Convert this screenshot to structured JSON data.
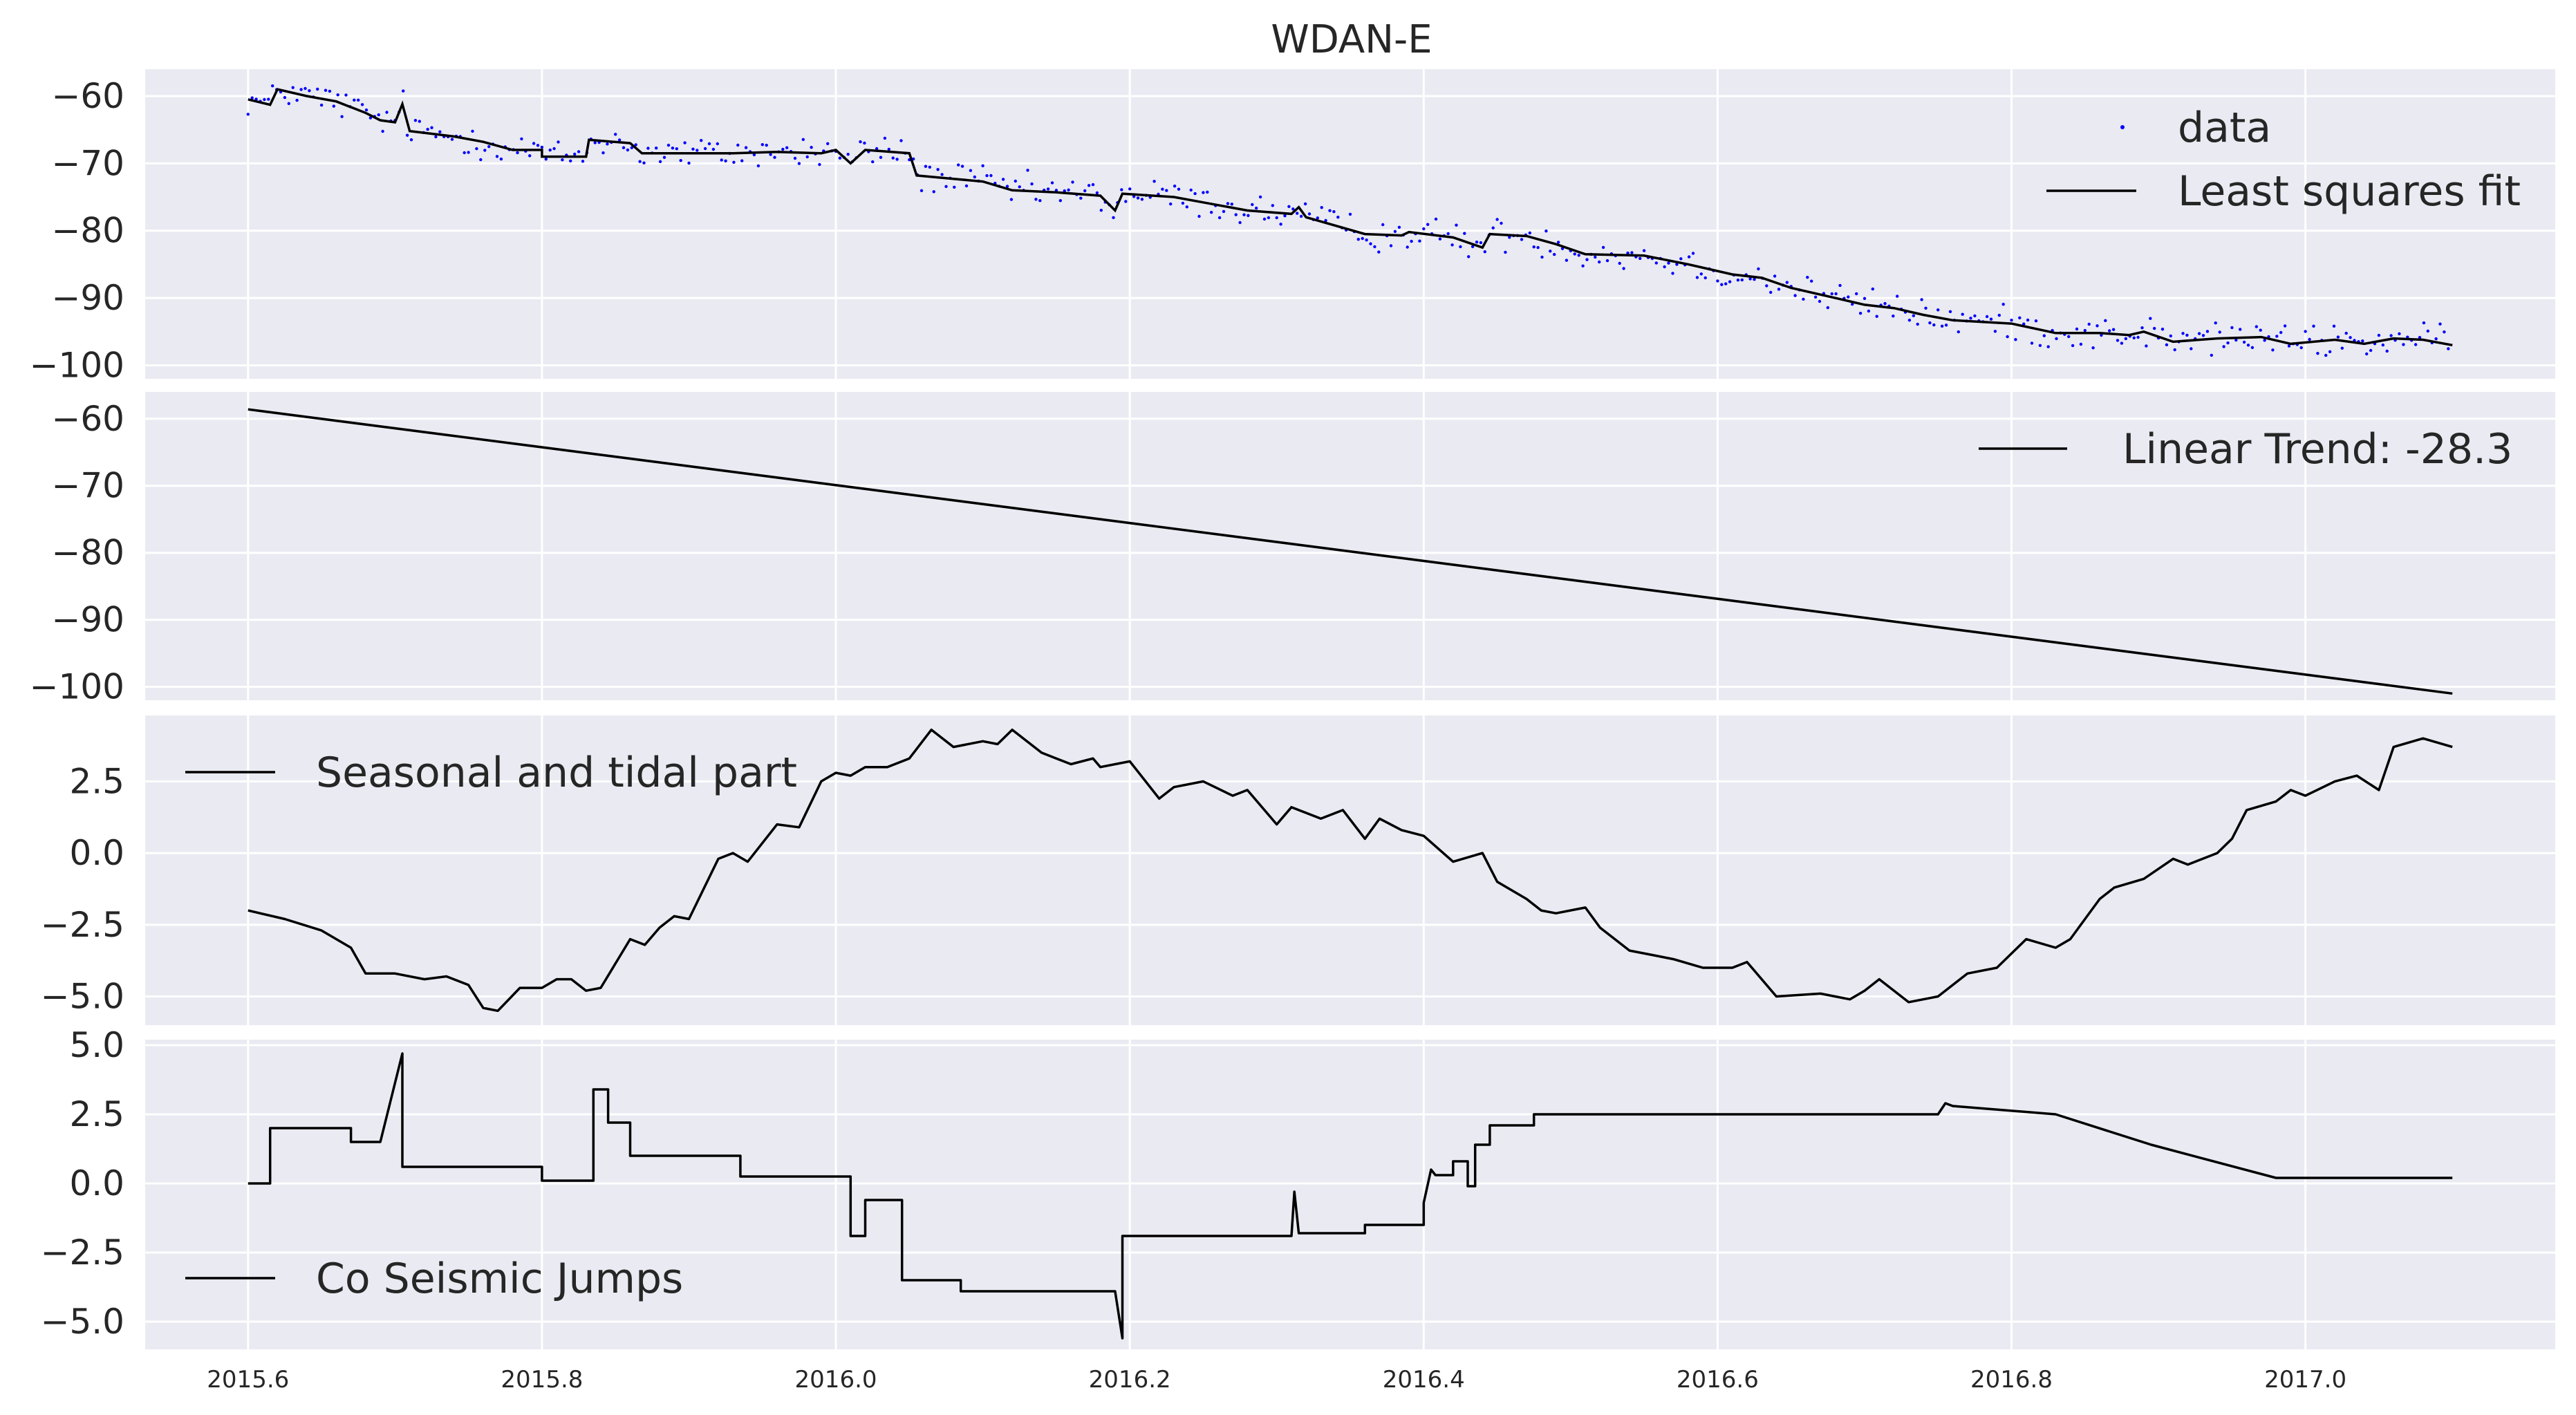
{
  "chart_data": [
    {
      "type": "scatter+line",
      "title": "WDAN-E",
      "xlabel": "",
      "ylabel": "",
      "xlim": [
        2015.53,
        2017.17
      ],
      "ylim": [
        -102,
        -56
      ],
      "yticks": [
        "−60",
        "−70",
        "−80",
        "−90",
        "−100"
      ],
      "ytick_values": [
        -60,
        -70,
        -80,
        -90,
        -100
      ],
      "grid": true,
      "legend": "top-right",
      "series": [
        {
          "name": "data",
          "kind": "points",
          "color": "#0000ff"
        },
        {
          "name": "Least squares fit",
          "kind": "line",
          "color": "#000000"
        }
      ],
      "fit_points": [
        [
          2015.6,
          -60.5
        ],
        [
          2015.615,
          -61.3
        ],
        [
          2015.62,
          -59.0
        ],
        [
          2015.64,
          -60.0
        ],
        [
          2015.66,
          -60.8
        ],
        [
          2015.68,
          -62.5
        ],
        [
          2015.69,
          -63.6
        ],
        [
          2015.7,
          -63.9
        ],
        [
          2015.705,
          -61.2
        ],
        [
          2015.71,
          -65.2
        ],
        [
          2015.74,
          -66.0
        ],
        [
          2015.76,
          -66.8
        ],
        [
          2015.78,
          -68.0
        ],
        [
          2015.8,
          -68.0
        ],
        [
          2015.8,
          -69.0
        ],
        [
          2015.83,
          -69.0
        ],
        [
          2015.832,
          -66.5
        ],
        [
          2015.86,
          -67.0
        ],
        [
          2015.868,
          -68.5
        ],
        [
          2015.9,
          -68.5
        ],
        [
          2015.93,
          -68.5
        ],
        [
          2015.96,
          -68.3
        ],
        [
          2015.99,
          -68.5
        ],
        [
          2016.0,
          -68.0
        ],
        [
          2016.01,
          -70.0
        ],
        [
          2016.02,
          -68.0
        ],
        [
          2016.05,
          -68.5
        ],
        [
          2016.055,
          -71.8
        ],
        [
          2016.08,
          -72.3
        ],
        [
          2016.1,
          -72.7
        ],
        [
          2016.12,
          -74.0
        ],
        [
          2016.15,
          -74.3
        ],
        [
          2016.18,
          -74.8
        ],
        [
          2016.19,
          -77.0
        ],
        [
          2016.195,
          -74.5
        ],
        [
          2016.23,
          -75.0
        ],
        [
          2016.25,
          -75.8
        ],
        [
          2016.28,
          -77.0
        ],
        [
          2016.31,
          -77.5
        ],
        [
          2016.315,
          -76.5
        ],
        [
          2016.32,
          -78.0
        ],
        [
          2016.36,
          -80.5
        ],
        [
          2016.385,
          -80.7
        ],
        [
          2016.39,
          -80.2
        ],
        [
          2016.42,
          -81.0
        ],
        [
          2016.44,
          -82.5
        ],
        [
          2016.445,
          -80.5
        ],
        [
          2016.47,
          -80.8
        ],
        [
          2016.49,
          -82.0
        ],
        [
          2016.51,
          -83.5
        ],
        [
          2016.55,
          -83.7
        ],
        [
          2016.58,
          -85.0
        ],
        [
          2016.61,
          -86.5
        ],
        [
          2016.63,
          -87.0
        ],
        [
          2016.65,
          -88.5
        ],
        [
          2016.68,
          -90.0
        ],
        [
          2016.7,
          -91.0
        ],
        [
          2016.72,
          -91.5
        ],
        [
          2016.74,
          -92.5
        ],
        [
          2016.76,
          -93.3
        ],
        [
          2016.8,
          -93.8
        ],
        [
          2016.83,
          -95.2
        ],
        [
          2016.86,
          -95.2
        ],
        [
          2016.88,
          -95.5
        ],
        [
          2016.89,
          -95.0
        ],
        [
          2016.91,
          -96.5
        ],
        [
          2016.94,
          -96.0
        ],
        [
          2016.97,
          -95.8
        ],
        [
          2016.99,
          -96.8
        ],
        [
          2017.02,
          -96.2
        ],
        [
          2017.04,
          -96.8
        ],
        [
          2017.06,
          -96.0
        ],
        [
          2017.08,
          -96.2
        ],
        [
          2017.1,
          -97.0
        ]
      ]
    },
    {
      "type": "line",
      "title": "",
      "xlim": [
        2015.53,
        2017.17
      ],
      "ylim": [
        -102,
        -56
      ],
      "yticks": [
        "−60",
        "−70",
        "−80",
        "−90",
        "−100"
      ],
      "ytick_values": [
        -60,
        -70,
        -80,
        -90,
        -100
      ],
      "grid": true,
      "legend": "top-right",
      "series": [
        {
          "name": "Linear Trend: -28.3",
          "kind": "line",
          "color": "#000000",
          "x": [
            2015.6,
            2017.1
          ],
          "y": [
            -58.6,
            -101.0
          ]
        }
      ]
    },
    {
      "type": "line",
      "title": "",
      "xlim": [
        2015.53,
        2017.17
      ],
      "ylim": [
        -6.0,
        4.8
      ],
      "yticks": [
        "2.5",
        "0.0",
        "−2.5",
        "−5.0"
      ],
      "ytick_values": [
        2.5,
        0.0,
        -2.5,
        -5.0
      ],
      "grid": true,
      "legend": "top-left",
      "series": [
        {
          "name": "Seasonal and tidal part",
          "kind": "line",
          "color": "#000000",
          "x": [
            2015.6,
            2015.625,
            2015.65,
            2015.67,
            2015.68,
            2015.7,
            2015.72,
            2015.735,
            2015.75,
            2015.76,
            2015.77,
            2015.785,
            2015.8,
            2015.81,
            2015.82,
            2015.83,
            2015.84,
            2015.86,
            2015.87,
            2015.88,
            2015.89,
            2015.9,
            2015.92,
            2015.93,
            2015.94,
            2015.96,
            2015.975,
            2015.99,
            2016.0,
            2016.01,
            2016.02,
            2016.035,
            2016.05,
            2016.065,
            2016.08,
            2016.1,
            2016.11,
            2016.12,
            2016.14,
            2016.16,
            2016.175,
            2016.18,
            2016.2,
            2016.22,
            2016.23,
            2016.25,
            2016.27,
            2016.28,
            2016.3,
            2016.31,
            2016.33,
            2016.345,
            2016.36,
            2016.37,
            2016.385,
            2016.4,
            2016.42,
            2016.44,
            2016.45,
            2016.47,
            2016.48,
            2016.49,
            2016.51,
            2016.52,
            2016.54,
            2016.56,
            2016.57,
            2016.59,
            2016.61,
            2016.62,
            2016.64,
            2016.67,
            2016.69,
            2016.7,
            2016.71,
            2016.73,
            2016.75,
            2016.77,
            2016.79,
            2016.81,
            2016.83,
            2016.84,
            2016.85,
            2016.86,
            2016.87,
            2016.89,
            2016.91,
            2016.92,
            2016.94,
            2016.95,
            2016.96,
            2016.98,
            2016.99,
            2017.0,
            2017.02,
            2017.035,
            2017.05,
            2017.06,
            2017.08,
            2017.1
          ],
          "y": [
            -2.0,
            -2.3,
            -2.7,
            -3.3,
            -4.2,
            -4.2,
            -4.4,
            -4.3,
            -4.6,
            -5.4,
            -5.5,
            -4.7,
            -4.7,
            -4.4,
            -4.4,
            -4.8,
            -4.7,
            -3.0,
            -3.2,
            -2.6,
            -2.2,
            -2.3,
            -0.2,
            0.0,
            -0.3,
            1.0,
            0.9,
            2.5,
            2.8,
            2.7,
            3.0,
            3.0,
            3.3,
            4.3,
            3.7,
            3.9,
            3.8,
            4.3,
            3.5,
            3.1,
            3.3,
            3.0,
            3.2,
            1.9,
            2.3,
            2.5,
            2.0,
            2.2,
            1.0,
            1.6,
            1.2,
            1.5,
            0.5,
            1.2,
            0.8,
            0.6,
            -0.3,
            0.0,
            -1.0,
            -1.6,
            -2.0,
            -2.1,
            -1.9,
            -2.6,
            -3.4,
            -3.6,
            -3.7,
            -4.0,
            -4.0,
            -3.8,
            -5.0,
            -4.9,
            -5.1,
            -4.8,
            -4.4,
            -5.2,
            -5.0,
            -4.2,
            -4.0,
            -3.0,
            -3.3,
            -3.0,
            -2.3,
            -1.6,
            -1.2,
            -0.9,
            -0.2,
            -0.4,
            0.0,
            0.5,
            1.5,
            1.8,
            2.2,
            2.0,
            2.5,
            2.7,
            2.2,
            3.7,
            4.0,
            3.7
          ]
        }
      ]
    },
    {
      "type": "line",
      "title": "",
      "xlim": [
        2015.53,
        2017.17
      ],
      "ylim": [
        -6.0,
        5.2
      ],
      "yticks": [
        "5.0",
        "2.5",
        "0.0",
        "−2.5",
        "−5.0"
      ],
      "ytick_values": [
        5.0,
        2.5,
        0.0,
        -2.5,
        -5.0
      ],
      "xticks": [
        "2015.6",
        "2015.8",
        "2016.0",
        "2016.2",
        "2016.4",
        "2016.6",
        "2016.8",
        "2017.0"
      ],
      "xtick_values": [
        2015.6,
        2015.8,
        2016.0,
        2016.2,
        2016.4,
        2016.6,
        2016.8,
        2017.0
      ],
      "grid": true,
      "legend": "bottom-left",
      "series": [
        {
          "name": "Co Seismic Jumps",
          "kind": "step-line",
          "color": "#000000",
          "x": [
            2015.6,
            2015.615,
            2015.615,
            2015.67,
            2015.67,
            2015.69,
            2015.705,
            2015.705,
            2015.71,
            2015.71,
            2015.8,
            2015.8,
            2015.835,
            2015.835,
            2015.84,
            2015.845,
            2015.845,
            2015.86,
            2015.86,
            2015.935,
            2015.935,
            2016.0,
            2016.01,
            2016.01,
            2016.02,
            2016.02,
            2016.035,
            2016.045,
            2016.045,
            2016.085,
            2016.085,
            2016.19,
            2016.195,
            2016.195,
            2016.31,
            2016.312,
            2016.315,
            2016.32,
            2016.32,
            2016.36,
            2016.36,
            2016.4,
            2016.4,
            2016.405,
            2016.408,
            2016.41,
            2016.41,
            2016.42,
            2016.42,
            2016.43,
            2016.43,
            2016.435,
            2016.435,
            2016.445,
            2016.445,
            2016.455,
            2016.455,
            2016.46,
            2016.46,
            2016.47,
            2016.47,
            2016.475,
            2016.475,
            2016.56,
            2016.56,
            2016.75,
            2016.755,
            2016.755,
            2016.76,
            2016.76,
            2016.83,
            2016.83,
            2016.895,
            2016.895,
            2016.98,
            2016.98,
            2017.1
          ],
          "y": [
            0.0,
            0.0,
            2.0,
            2.0,
            1.5,
            1.5,
            4.7,
            0.6,
            0.6,
            0.6,
            0.6,
            0.1,
            0.1,
            3.4,
            3.4,
            3.4,
            2.2,
            2.2,
            1.0,
            1.0,
            0.25,
            0.25,
            0.25,
            -1.9,
            -1.9,
            -0.6,
            -0.6,
            -0.6,
            -3.5,
            -3.5,
            -3.9,
            -3.9,
            -5.6,
            -1.9,
            -1.9,
            -0.3,
            -1.8,
            -1.8,
            -1.8,
            -1.8,
            -1.5,
            -1.5,
            -0.7,
            0.5,
            0.3,
            0.3,
            0.3,
            0.3,
            0.8,
            0.8,
            -0.1,
            -0.1,
            1.4,
            1.4,
            2.1,
            2.1,
            2.1,
            2.1,
            2.1,
            2.1,
            2.1,
            2.1,
            2.5,
            2.5,
            2.5,
            2.5,
            2.9,
            2.9,
            2.8,
            2.8,
            2.5,
            2.5,
            1.4,
            1.4,
            0.2,
            0.2,
            0.2
          ]
        }
      ]
    }
  ]
}
